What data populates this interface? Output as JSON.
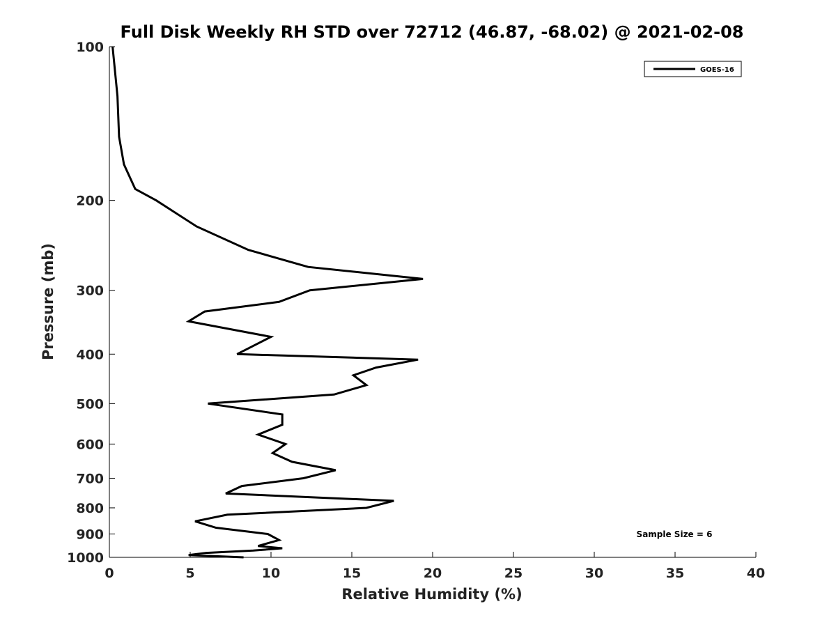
{
  "chart_data": {
    "type": "line",
    "title": "Full Disk Weekly RH STD over 72712 (46.87, -68.02) @ 2021-02-08",
    "xlabel": "Relative Humidity (%)",
    "ylabel": "Pressure (mb)",
    "xlim": [
      0,
      40
    ],
    "ylim": [
      100,
      1000
    ],
    "y_scale": "log",
    "y_inverted": true,
    "x_ticks": [
      "0",
      "5",
      "10",
      "15",
      "20",
      "25",
      "30",
      "35",
      "40"
    ],
    "y_ticks": [
      "100",
      "200",
      "300",
      "400",
      "500",
      "600",
      "700",
      "800",
      "900",
      "1000"
    ],
    "grid": false,
    "legend_position": "top-right",
    "annotation": "Sample Size = 6",
    "series": [
      {
        "name": "GOES-16",
        "color": "#000000",
        "points": [
          [
            0.2,
            100
          ],
          [
            0.5,
            125
          ],
          [
            0.6,
            150
          ],
          [
            0.9,
            170
          ],
          [
            1.6,
            190
          ],
          [
            2.9,
            200
          ],
          [
            5.4,
            225
          ],
          [
            8.6,
            250
          ],
          [
            12.3,
            270
          ],
          [
            19.4,
            285
          ],
          [
            12.4,
            300
          ],
          [
            10.5,
            316
          ],
          [
            5.9,
            330
          ],
          [
            4.9,
            345
          ],
          [
            10.0,
            370
          ],
          [
            7.9,
            400
          ],
          [
            19.1,
            410
          ],
          [
            16.5,
            425
          ],
          [
            15.1,
            440
          ],
          [
            15.9,
            460
          ],
          [
            13.9,
            480
          ],
          [
            6.1,
            500
          ],
          [
            10.7,
            525
          ],
          [
            10.7,
            550
          ],
          [
            9.2,
            575
          ],
          [
            10.9,
            600
          ],
          [
            10.1,
            625
          ],
          [
            11.3,
            650
          ],
          [
            14.0,
            675
          ],
          [
            12.0,
            700
          ],
          [
            8.2,
            725
          ],
          [
            7.2,
            750
          ],
          [
            17.6,
            775
          ],
          [
            15.9,
            800
          ],
          [
            7.3,
            825
          ],
          [
            5.3,
            850
          ],
          [
            6.6,
            875
          ],
          [
            9.8,
            900
          ],
          [
            10.5,
            925
          ],
          [
            9.2,
            950
          ],
          [
            10.7,
            960
          ],
          [
            8.9,
            970
          ],
          [
            6.0,
            980
          ],
          [
            4.9,
            990
          ],
          [
            8.3,
            1000
          ]
        ]
      }
    ]
  }
}
